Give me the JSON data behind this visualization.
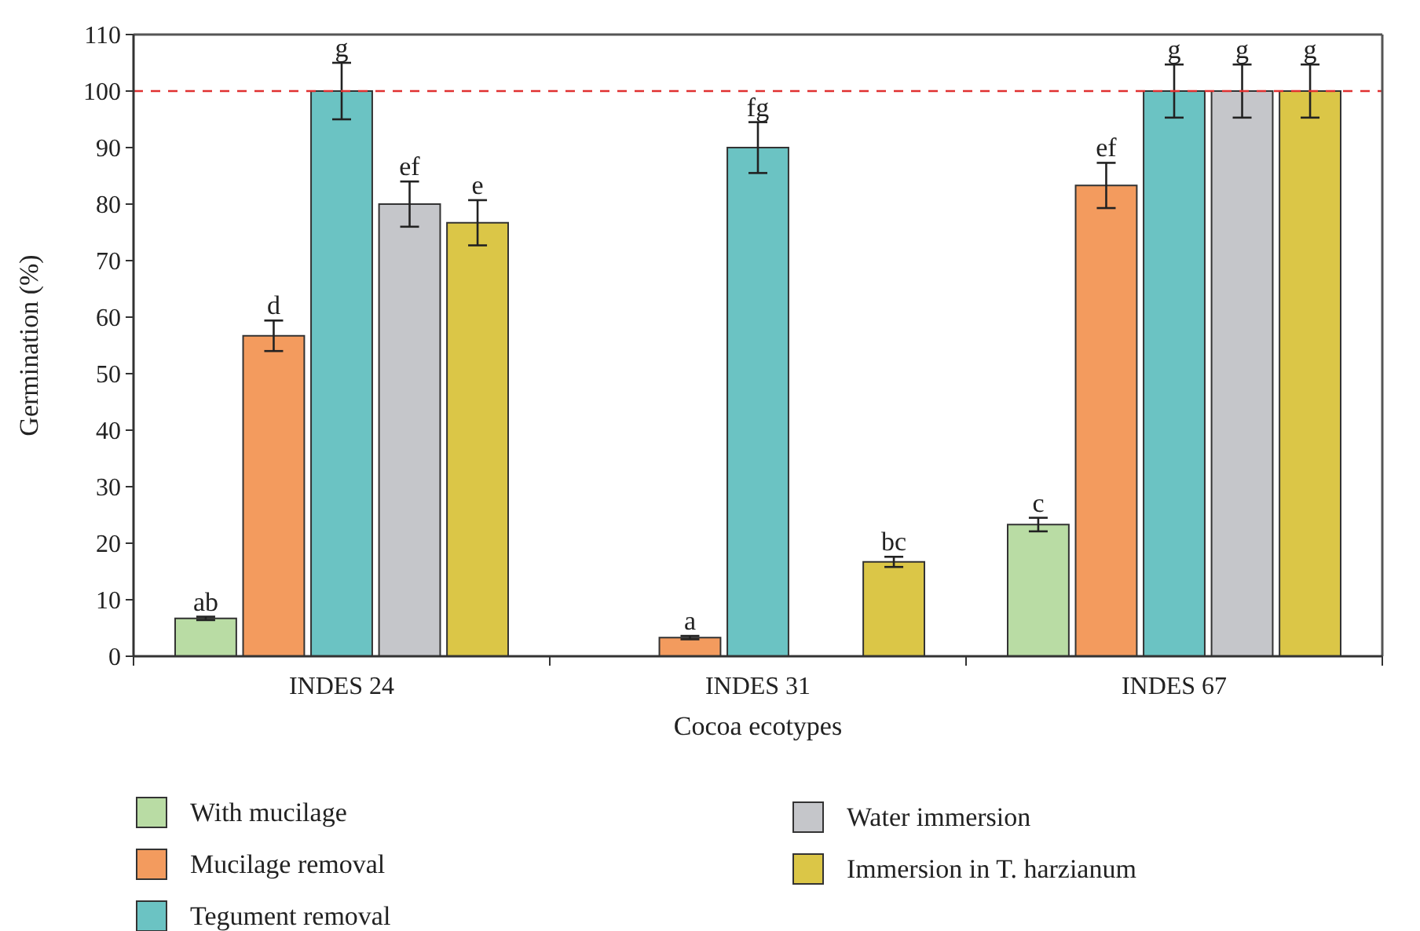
{
  "chart_data": {
    "type": "bar",
    "xlabel": "Cocoa ecotypes",
    "ylabel": "Germination (%)",
    "categories": [
      "INDES 24",
      "INDES 31",
      "INDES 67"
    ],
    "series": [
      {
        "name": "With mucilage",
        "color": "#b9dca4",
        "values": [
          6.7,
          0,
          23.3
        ],
        "errors": [
          0.3,
          null,
          1.2
        ],
        "value_labels": [
          "ab",
          null,
          "c"
        ]
      },
      {
        "name": "Mucilage removal",
        "color": "#f39b5e",
        "values": [
          56.7,
          3.3,
          83.3
        ],
        "errors": [
          2.7,
          0.3,
          4
        ],
        "value_labels": [
          "d",
          "a",
          "ef"
        ]
      },
      {
        "name": "Tegument removal",
        "color": "#6bc3c3",
        "values": [
          100,
          90,
          100
        ],
        "errors": [
          5,
          4.5,
          4.7
        ],
        "value_labels": [
          "g",
          "fg",
          "g"
        ]
      },
      {
        "name": "Water immersion",
        "color": "#c5c6ca",
        "values": [
          80,
          0,
          100
        ],
        "errors": [
          4,
          null,
          4.7
        ],
        "value_labels": [
          "ef",
          null,
          "g"
        ]
      },
      {
        "name": "Immersion in T. harzianum",
        "color": "#dbc647",
        "values": [
          76.7,
          16.7,
          100
        ],
        "errors": [
          4,
          0.9,
          4.7
        ],
        "value_labels": [
          "e",
          "bc",
          "g"
        ]
      }
    ],
    "ylim": [
      0,
      110
    ],
    "yticks": [
      0,
      10,
      20,
      30,
      40,
      50,
      60,
      70,
      80,
      90,
      100,
      110
    ],
    "ref_lines": [
      {
        "axis": "y",
        "value": 100,
        "color": "#e03030",
        "line_style": "dashed"
      }
    ],
    "legend": "bottom",
    "grid": false
  }
}
